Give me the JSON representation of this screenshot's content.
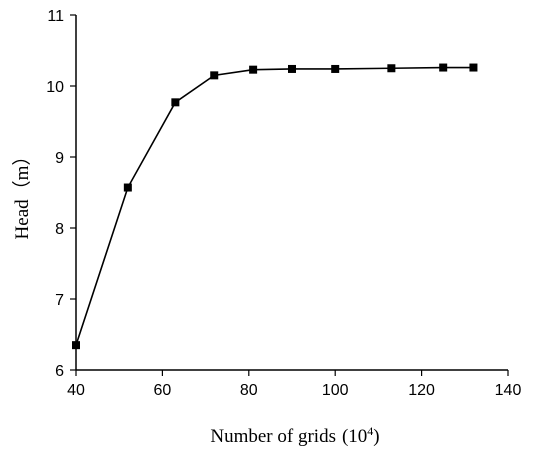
{
  "chart_data": {
    "type": "line",
    "title": "",
    "xlabel": "Number of grids",
    "xlabel_unit_base": "(10",
    "xlabel_unit_exp": "4",
    "xlabel_unit_close": ")",
    "ylabel": "Head（m）",
    "xlim": [
      40,
      140
    ],
    "ylim": [
      6,
      11
    ],
    "xticks": [
      40,
      60,
      80,
      100,
      120,
      140
    ],
    "yticks": [
      6,
      7,
      8,
      9,
      10,
      11
    ],
    "grid": false,
    "marker": "square",
    "line_color": "#000000",
    "series": [
      {
        "x": [
          40,
          52,
          63,
          72,
          81,
          90,
          100,
          113,
          125,
          132
        ],
        "y": [
          6.35,
          8.57,
          9.77,
          10.15,
          10.23,
          10.24,
          10.24,
          10.25,
          10.26,
          10.26
        ]
      }
    ]
  }
}
